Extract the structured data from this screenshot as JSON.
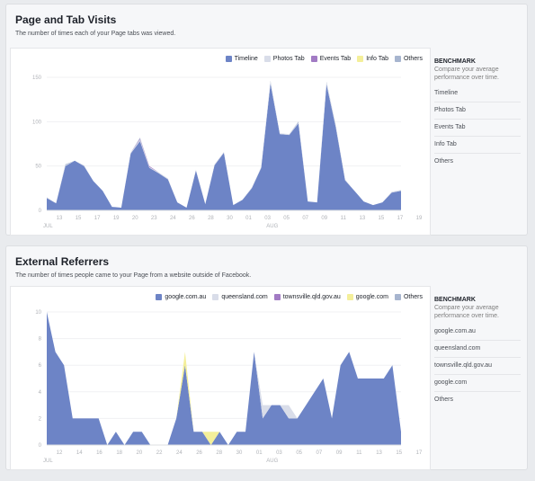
{
  "panels": [
    {
      "title": "Page and Tab Visits",
      "subtitle": "The number of times each of your Page tabs was viewed.",
      "legend": [
        {
          "label": "Timeline",
          "color": "#6d84c6"
        },
        {
          "label": "Photos Tab",
          "color": "#d9dde9"
        },
        {
          "label": "Events Tab",
          "color": "#a27bc4"
        },
        {
          "label": "Info Tab",
          "color": "#f4ef9a"
        },
        {
          "label": "Others",
          "color": "#a7b5cf"
        }
      ],
      "benchmark": {
        "title": "BENCHMARK",
        "description": "Compare your average performance over time.",
        "items": [
          "Timeline",
          "Photos Tab",
          "Events Tab",
          "Info Tab",
          "Others"
        ]
      }
    },
    {
      "title": "External Referrers",
      "subtitle": "The number of times people came to your Page from a website outside of Facebook.",
      "legend": [
        {
          "label": "google.com.au",
          "color": "#6d84c6"
        },
        {
          "label": "queensland.com",
          "color": "#d9dde9"
        },
        {
          "label": "townsville.qld.gov.au",
          "color": "#a27bc4"
        },
        {
          "label": "google.com",
          "color": "#f4ef9a"
        },
        {
          "label": "Others",
          "color": "#a7b5cf"
        }
      ],
      "benchmark": {
        "title": "BENCHMARK",
        "description": "Compare your average performance over time.",
        "items": [
          "google.com.au",
          "queensland.com",
          "townsville.qld.gov.au",
          "google.com",
          "Others"
        ]
      }
    }
  ],
  "chart_data": [
    {
      "type": "area",
      "ylim": [
        0,
        150
      ],
      "yticks": [
        "0",
        "50",
        "100",
        "150"
      ],
      "xticks": [
        "13",
        "15",
        "17",
        "19",
        "20",
        "23",
        "24",
        "26",
        "28",
        "30",
        "01",
        "03",
        "05",
        "07",
        "09",
        "11",
        "13",
        "15",
        "17",
        "19"
      ],
      "months": [
        "JUL",
        "AUG"
      ],
      "series": [
        {
          "name": "Timeline",
          "color": "#6d84c6",
          "values": [
            14,
            8,
            50,
            56,
            50,
            33,
            22,
            4,
            3,
            64,
            78,
            48,
            42,
            35,
            9,
            3,
            45,
            7,
            51,
            65,
            6,
            12,
            25,
            48,
            143,
            86,
            85,
            98,
            10,
            9,
            142,
            94,
            34,
            22,
            10,
            6,
            9,
            20,
            22
          ]
        },
        {
          "name": "Photos Tab",
          "color": "#d9dde9",
          "values": [
            1,
            0,
            1,
            0,
            1,
            0,
            0,
            0,
            0,
            1,
            2,
            1,
            1,
            1,
            0,
            0,
            1,
            0,
            1,
            1,
            0,
            0,
            1,
            1,
            2,
            1,
            1,
            1,
            0,
            0,
            2,
            1,
            1,
            0,
            0,
            0,
            0,
            1,
            1
          ]
        },
        {
          "name": "Events Tab",
          "color": "#a27bc4",
          "values": [
            0,
            0,
            0,
            0,
            0,
            0,
            0,
            0,
            0,
            0,
            1,
            1,
            0,
            0,
            0,
            0,
            0,
            0,
            0,
            0,
            0,
            0,
            0,
            0,
            0,
            0,
            0,
            0,
            0,
            0,
            0,
            0,
            0,
            0,
            0,
            0,
            0,
            0,
            0
          ]
        },
        {
          "name": "Info Tab",
          "color": "#f4ef9a",
          "values": [
            0,
            0,
            0,
            0,
            0,
            0,
            0,
            0,
            0,
            0,
            0,
            0,
            0,
            0,
            0,
            0,
            0,
            0,
            0,
            0,
            0,
            0,
            0,
            0,
            0,
            0,
            0,
            0,
            0,
            0,
            0,
            0,
            0,
            0,
            0,
            0,
            0,
            0,
            0
          ]
        },
        {
          "name": "Others",
          "color": "#a7b5cf",
          "values": [
            0,
            0,
            1,
            0,
            0,
            0,
            0,
            0,
            0,
            0,
            1,
            0,
            0,
            0,
            0,
            0,
            0,
            0,
            0,
            0,
            0,
            0,
            0,
            0,
            1,
            0,
            0,
            1,
            0,
            0,
            1,
            1,
            0,
            0,
            0,
            0,
            0,
            0,
            0
          ]
        }
      ]
    },
    {
      "type": "area",
      "ylim": [
        0,
        10
      ],
      "yticks": [
        "0",
        "2",
        "4",
        "6",
        "8",
        "10"
      ],
      "xticks": [
        "12",
        "14",
        "16",
        "18",
        "20",
        "22",
        "24",
        "26",
        "28",
        "30",
        "01",
        "03",
        "05",
        "07",
        "09",
        "11",
        "13",
        "15",
        "17"
      ],
      "months": [
        "JUL",
        "AUG"
      ],
      "series": [
        {
          "name": "google.com.au",
          "color": "#6d84c6",
          "values": [
            10,
            7,
            6,
            2,
            2,
            2,
            2,
            0,
            1,
            0,
            1,
            1,
            0,
            0,
            0,
            2,
            6,
            1,
            1,
            0,
            1,
            0,
            1,
            1,
            7,
            2,
            3,
            3,
            2,
            2,
            3,
            4,
            5,
            2,
            6,
            7,
            5,
            5,
            5,
            5,
            6,
            1
          ]
        },
        {
          "name": "queensland.com",
          "color": "#d9dde9",
          "values": [
            0,
            0,
            0,
            0,
            0,
            0,
            0,
            0,
            0,
            0,
            0,
            0,
            0,
            0,
            0,
            0,
            0,
            0,
            0,
            0,
            0,
            0,
            0,
            0,
            0,
            1,
            0,
            0,
            1,
            0,
            0,
            0,
            0,
            0,
            0,
            0,
            0,
            0,
            0,
            0,
            0,
            0
          ]
        },
        {
          "name": "townsville.qld.gov.au",
          "color": "#a27bc4",
          "values": [
            0,
            0,
            0,
            0,
            0,
            0,
            0,
            0,
            0,
            0,
            0,
            0,
            0,
            0,
            0,
            0,
            0,
            0,
            0,
            0,
            0,
            0,
            0,
            0,
            0,
            0,
            0,
            0,
            0,
            0,
            0,
            0,
            0,
            0,
            0,
            0,
            0,
            0,
            0,
            0,
            0,
            0
          ]
        },
        {
          "name": "google.com",
          "color": "#f4ef9a",
          "values": [
            0,
            0,
            0,
            0,
            0,
            0,
            0,
            0,
            0,
            0,
            0,
            0,
            0,
            0,
            0,
            0,
            1,
            0,
            0,
            1,
            0,
            0,
            0,
            0,
            0,
            0,
            0,
            0,
            0,
            0,
            0,
            0,
            0,
            0,
            0,
            0,
            0,
            0,
            0,
            0,
            0,
            0
          ]
        },
        {
          "name": "Others",
          "color": "#a7b5cf",
          "values": [
            0,
            0,
            0,
            0,
            0,
            0,
            0,
            0,
            0,
            0,
            0,
            0,
            0,
            0,
            0,
            0,
            0,
            0,
            0,
            0,
            0,
            0,
            0,
            0,
            0,
            0,
            0,
            0,
            0,
            0,
            0,
            0,
            0,
            0,
            0,
            0,
            0,
            0,
            0,
            0,
            0,
            0
          ]
        }
      ]
    }
  ]
}
